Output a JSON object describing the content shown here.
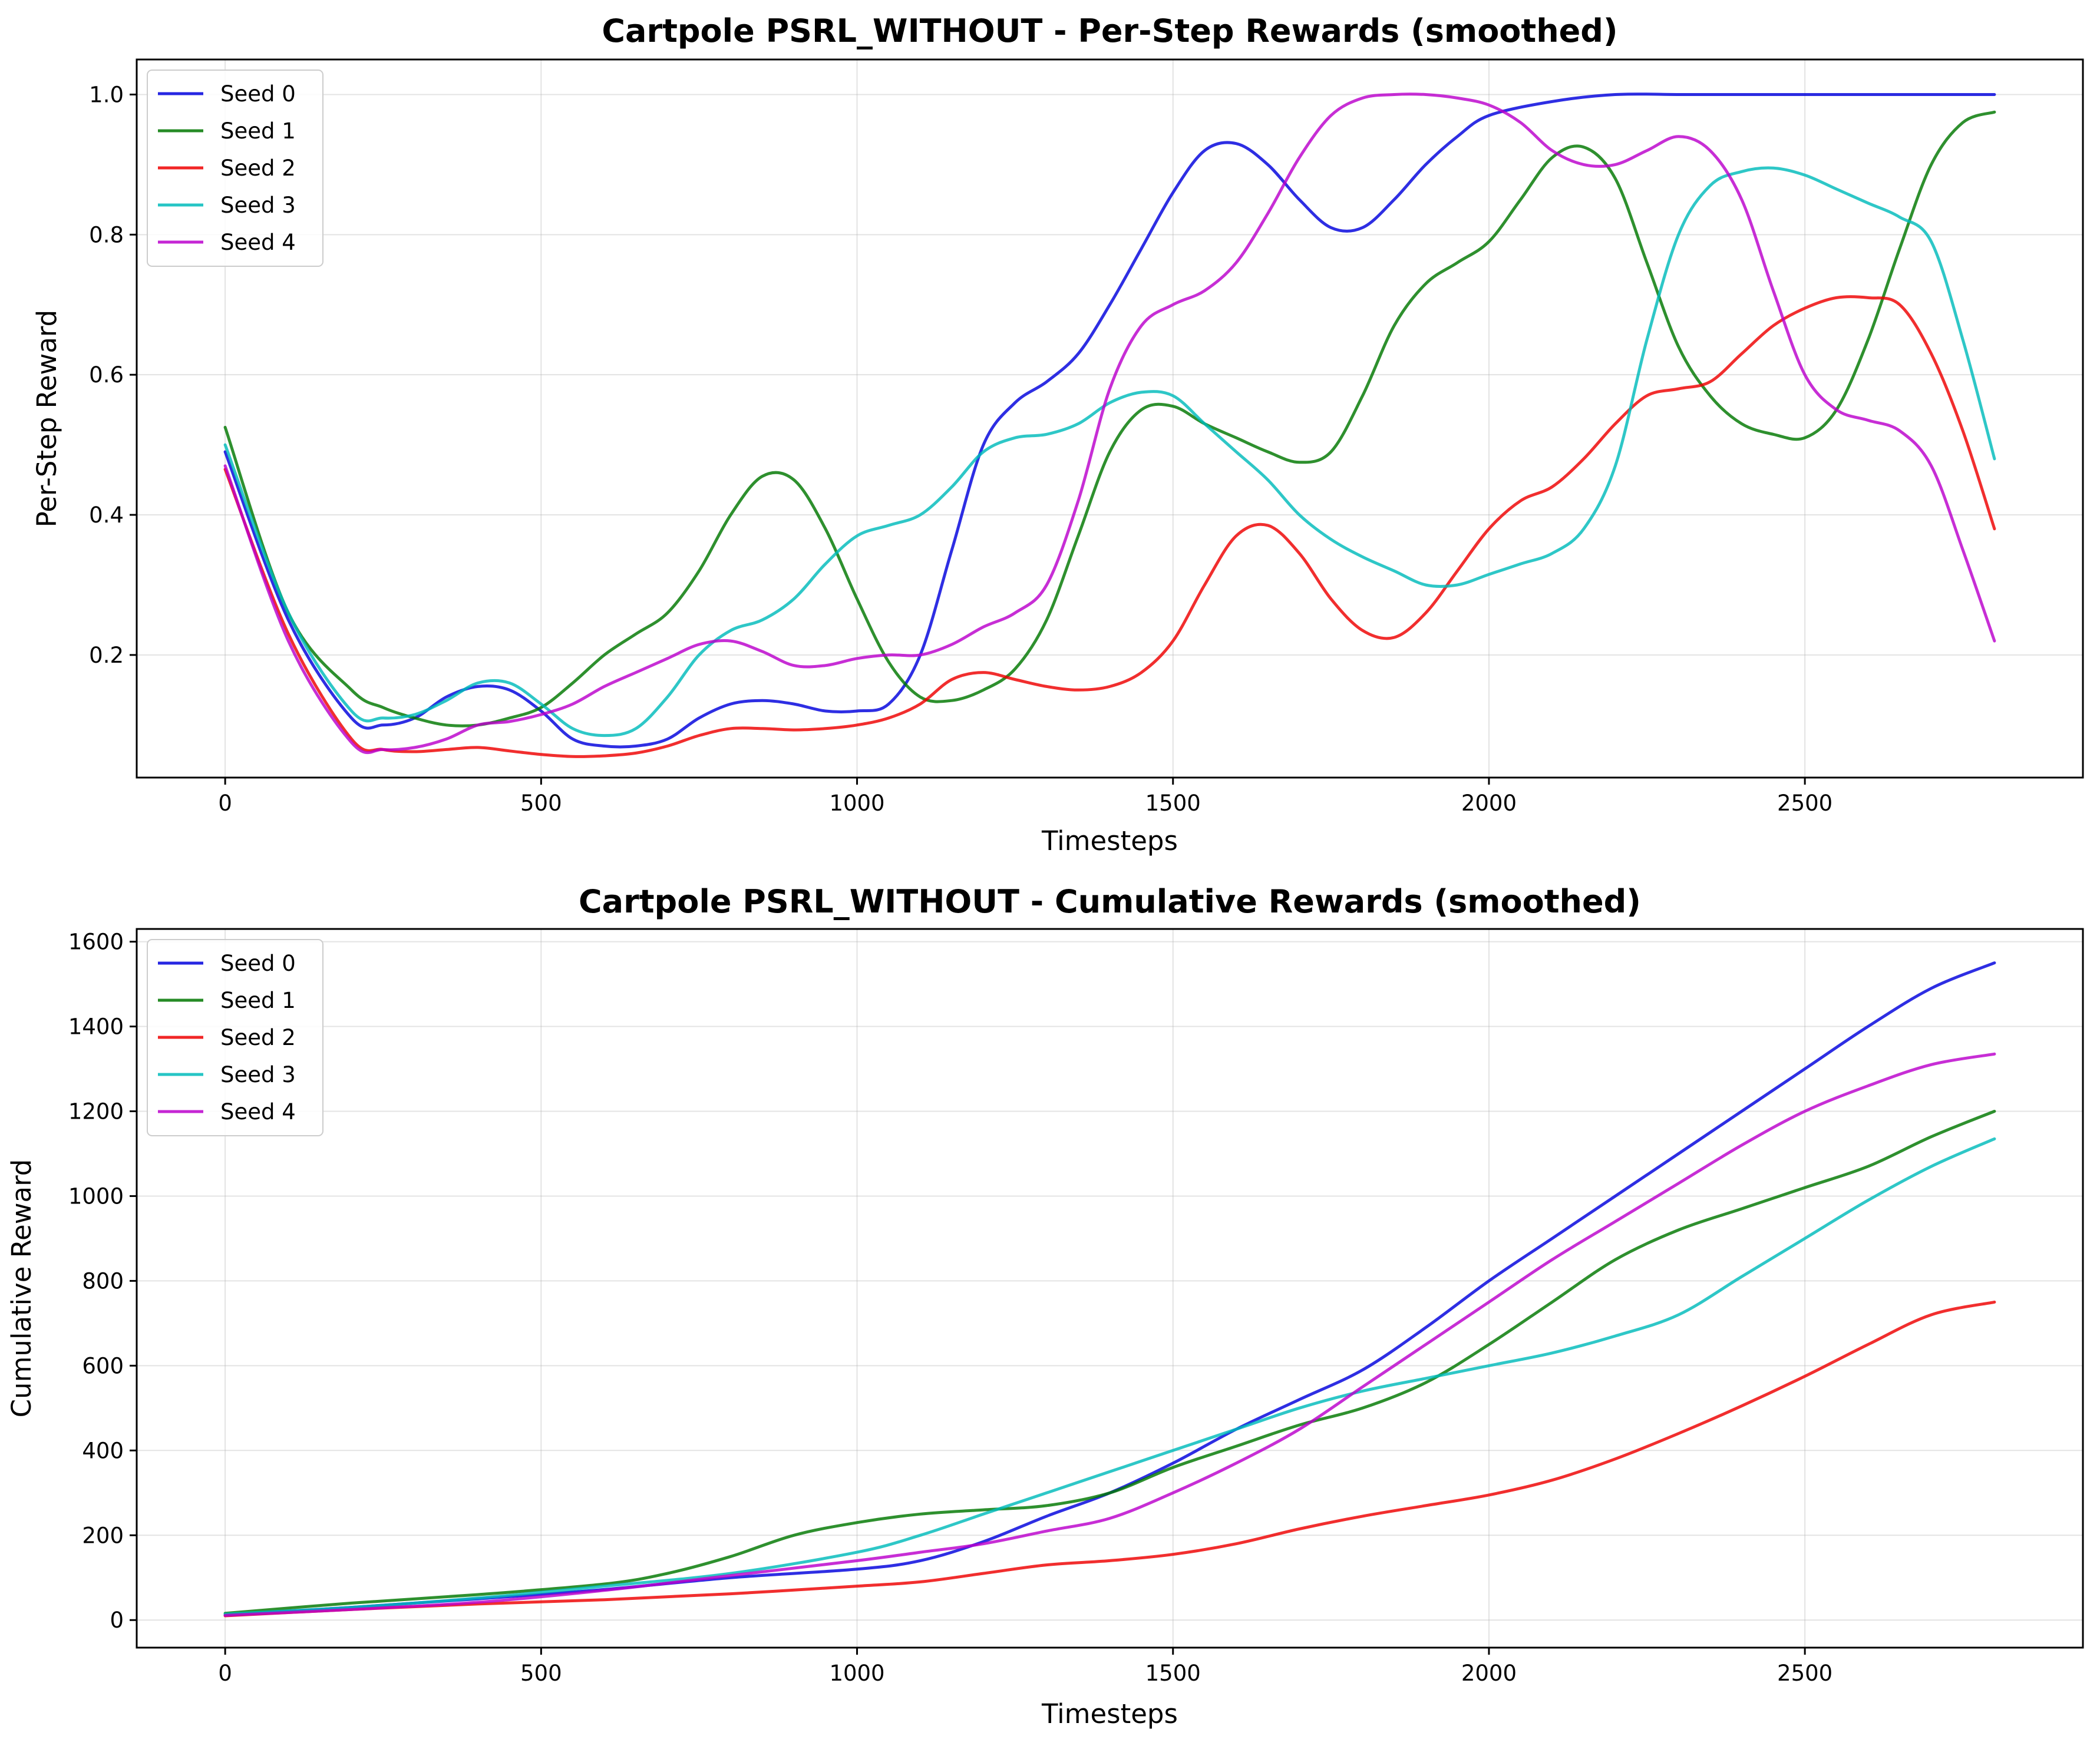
{
  "colors": {
    "Seed 0": "#0000dd",
    "Seed 1": "#007700",
    "Seed 2": "#ee0000",
    "Seed 3": "#00bbbb",
    "Seed 4": "#bb00cc"
  },
  "chart_data": [
    {
      "type": "line",
      "title": "Cartpole PSRL_WITHOUT - Per-Step Rewards (smoothed)",
      "xlabel": "Timesteps",
      "ylabel": "Per-Step Reward",
      "xlim": [
        -140,
        2940
      ],
      "ylim": [
        0.025,
        1.05
      ],
      "xticks": [
        0,
        500,
        1000,
        1500,
        2000,
        2500
      ],
      "yticks": [
        0.2,
        0.4,
        0.6,
        0.8,
        1.0
      ],
      "ytick_format": 1,
      "grid": true,
      "legend": "top-left",
      "series": [
        {
          "name": "Seed 0",
          "x": [
            0,
            100,
            200,
            250,
            300,
            350,
            400,
            450,
            500,
            550,
            600,
            650,
            700,
            750,
            800,
            850,
            900,
            950,
            1000,
            1050,
            1100,
            1150,
            1200,
            1250,
            1300,
            1350,
            1400,
            1450,
            1500,
            1550,
            1600,
            1650,
            1700,
            1750,
            1800,
            1850,
            1900,
            1950,
            2000,
            2100,
            2200,
            2300,
            2400,
            2500,
            2600,
            2700,
            2800
          ],
          "y": [
            0.49,
            0.25,
            0.11,
            0.1,
            0.11,
            0.14,
            0.155,
            0.15,
            0.12,
            0.08,
            0.07,
            0.07,
            0.08,
            0.11,
            0.13,
            0.135,
            0.13,
            0.12,
            0.12,
            0.13,
            0.2,
            0.35,
            0.5,
            0.56,
            0.59,
            0.63,
            0.7,
            0.78,
            0.86,
            0.92,
            0.93,
            0.9,
            0.85,
            0.81,
            0.81,
            0.85,
            0.9,
            0.94,
            0.97,
            0.99,
            1.0,
            1.0,
            1.0,
            1.0,
            1.0,
            1.0,
            1.0
          ]
        },
        {
          "name": "Seed 1",
          "x": [
            0,
            100,
            200,
            250,
            300,
            350,
            400,
            450,
            500,
            550,
            600,
            650,
            700,
            750,
            800,
            850,
            900,
            950,
            1000,
            1050,
            1100,
            1150,
            1200,
            1250,
            1300,
            1350,
            1400,
            1450,
            1500,
            1550,
            1600,
            1650,
            1700,
            1750,
            1800,
            1850,
            1900,
            1950,
            2000,
            2050,
            2100,
            2150,
            2200,
            2250,
            2300,
            2350,
            2400,
            2450,
            2500,
            2550,
            2600,
            2650,
            2700,
            2750,
            2800
          ],
          "y": [
            0.525,
            0.26,
            0.15,
            0.125,
            0.11,
            0.1,
            0.1,
            0.11,
            0.125,
            0.16,
            0.2,
            0.23,
            0.26,
            0.32,
            0.4,
            0.455,
            0.45,
            0.38,
            0.28,
            0.19,
            0.14,
            0.135,
            0.15,
            0.18,
            0.25,
            0.37,
            0.49,
            0.55,
            0.555,
            0.53,
            0.51,
            0.49,
            0.475,
            0.49,
            0.57,
            0.67,
            0.73,
            0.76,
            0.79,
            0.85,
            0.91,
            0.925,
            0.88,
            0.76,
            0.64,
            0.57,
            0.53,
            0.515,
            0.51,
            0.55,
            0.65,
            0.78,
            0.9,
            0.96,
            0.975
          ]
        },
        {
          "name": "Seed 2",
          "x": [
            0,
            100,
            200,
            250,
            300,
            350,
            400,
            450,
            500,
            550,
            600,
            650,
            700,
            750,
            800,
            850,
            900,
            950,
            1000,
            1050,
            1100,
            1150,
            1200,
            1250,
            1300,
            1350,
            1400,
            1450,
            1500,
            1550,
            1600,
            1650,
            1700,
            1750,
            1800,
            1850,
            1900,
            1950,
            2000,
            2050,
            2100,
            2150,
            2200,
            2250,
            2300,
            2350,
            2400,
            2450,
            2500,
            2550,
            2600,
            2650,
            2700,
            2750,
            2800
          ],
          "y": [
            0.465,
            0.23,
            0.08,
            0.065,
            0.062,
            0.065,
            0.068,
            0.063,
            0.058,
            0.055,
            0.056,
            0.06,
            0.07,
            0.085,
            0.095,
            0.095,
            0.093,
            0.095,
            0.1,
            0.11,
            0.13,
            0.165,
            0.175,
            0.165,
            0.155,
            0.15,
            0.155,
            0.175,
            0.22,
            0.3,
            0.37,
            0.385,
            0.345,
            0.28,
            0.235,
            0.225,
            0.26,
            0.32,
            0.38,
            0.42,
            0.44,
            0.48,
            0.53,
            0.57,
            0.58,
            0.59,
            0.63,
            0.67,
            0.695,
            0.71,
            0.71,
            0.7,
            0.63,
            0.52,
            0.38
          ]
        },
        {
          "name": "Seed 3",
          "x": [
            0,
            100,
            200,
            250,
            300,
            350,
            400,
            450,
            500,
            550,
            600,
            650,
            700,
            750,
            800,
            850,
            900,
            950,
            1000,
            1050,
            1100,
            1150,
            1200,
            1250,
            1300,
            1350,
            1400,
            1450,
            1500,
            1550,
            1600,
            1650,
            1700,
            1750,
            1800,
            1850,
            1900,
            1950,
            2000,
            2050,
            2100,
            2150,
            2200,
            2250,
            2300,
            2350,
            2400,
            2450,
            2500,
            2550,
            2600,
            2650,
            2700,
            2750,
            2800
          ],
          "y": [
            0.5,
            0.26,
            0.12,
            0.11,
            0.115,
            0.135,
            0.16,
            0.16,
            0.13,
            0.095,
            0.085,
            0.095,
            0.14,
            0.2,
            0.235,
            0.25,
            0.28,
            0.33,
            0.37,
            0.385,
            0.4,
            0.44,
            0.49,
            0.51,
            0.515,
            0.53,
            0.56,
            0.575,
            0.57,
            0.53,
            0.49,
            0.45,
            0.4,
            0.365,
            0.34,
            0.32,
            0.3,
            0.3,
            0.315,
            0.33,
            0.345,
            0.38,
            0.47,
            0.65,
            0.8,
            0.87,
            0.89,
            0.895,
            0.885,
            0.865,
            0.845,
            0.825,
            0.79,
            0.65,
            0.48
          ]
        },
        {
          "name": "Seed 4",
          "x": [
            0,
            100,
            200,
            250,
            300,
            350,
            400,
            450,
            500,
            550,
            600,
            650,
            700,
            750,
            800,
            850,
            900,
            950,
            1000,
            1050,
            1100,
            1150,
            1200,
            1250,
            1300,
            1350,
            1400,
            1450,
            1500,
            1550,
            1600,
            1650,
            1700,
            1750,
            1800,
            1850,
            1900,
            1950,
            2000,
            2050,
            2100,
            2150,
            2200,
            2250,
            2300,
            2350,
            2400,
            2450,
            2500,
            2550,
            2600,
            2650,
            2700,
            2750,
            2800
          ],
          "y": [
            0.47,
            0.22,
            0.075,
            0.065,
            0.068,
            0.08,
            0.1,
            0.105,
            0.115,
            0.13,
            0.155,
            0.175,
            0.195,
            0.215,
            0.22,
            0.205,
            0.185,
            0.185,
            0.195,
            0.2,
            0.2,
            0.215,
            0.24,
            0.26,
            0.3,
            0.42,
            0.58,
            0.67,
            0.7,
            0.72,
            0.76,
            0.83,
            0.91,
            0.97,
            0.995,
            1.0,
            1.0,
            0.995,
            0.985,
            0.96,
            0.92,
            0.9,
            0.9,
            0.92,
            0.94,
            0.92,
            0.85,
            0.72,
            0.6,
            0.55,
            0.535,
            0.52,
            0.47,
            0.35,
            0.22
          ]
        }
      ]
    },
    {
      "type": "line",
      "title": "Cartpole PSRL_WITHOUT - Cumulative Rewards (smoothed)",
      "xlabel": "Timesteps",
      "ylabel": "Cumulative Reward",
      "xlim": [
        -140,
        2940
      ],
      "ylim": [
        -65,
        1630
      ],
      "xticks": [
        0,
        500,
        1000,
        1500,
        2000,
        2500
      ],
      "yticks": [
        0,
        200,
        400,
        600,
        800,
        1000,
        1200,
        1400,
        1600
      ],
      "ytick_format": 0,
      "grid": true,
      "legend": "top-left",
      "series": [
        {
          "name": "Seed 0",
          "x": [
            0,
            200,
            400,
            600,
            800,
            1000,
            1100,
            1200,
            1300,
            1400,
            1500,
            1600,
            1700,
            1800,
            1900,
            2000,
            2100,
            2200,
            2300,
            2400,
            2500,
            2600,
            2700,
            2800
          ],
          "y": [
            12,
            30,
            50,
            72,
            100,
            120,
            140,
            185,
            245,
            300,
            370,
            450,
            520,
            590,
            690,
            800,
            900,
            1000,
            1100,
            1200,
            1300,
            1400,
            1490,
            1550
          ]
        },
        {
          "name": "Seed 1",
          "x": [
            0,
            200,
            400,
            600,
            700,
            800,
            900,
            1000,
            1100,
            1200,
            1300,
            1400,
            1500,
            1600,
            1700,
            1800,
            1900,
            2000,
            2100,
            2200,
            2300,
            2400,
            2500,
            2600,
            2700,
            2800
          ],
          "y": [
            16,
            40,
            60,
            85,
            110,
            150,
            200,
            230,
            250,
            260,
            270,
            300,
            360,
            410,
            460,
            500,
            560,
            650,
            750,
            850,
            920,
            970,
            1020,
            1070,
            1140,
            1200
          ]
        },
        {
          "name": "Seed 2",
          "x": [
            0,
            200,
            400,
            600,
            800,
            1000,
            1100,
            1200,
            1300,
            1400,
            1500,
            1600,
            1700,
            1800,
            1900,
            2000,
            2100,
            2200,
            2300,
            2400,
            2500,
            2600,
            2700,
            2800
          ],
          "y": [
            10,
            25,
            38,
            48,
            62,
            80,
            90,
            110,
            130,
            140,
            155,
            180,
            215,
            245,
            270,
            295,
            330,
            380,
            440,
            505,
            575,
            650,
            720,
            750
          ]
        },
        {
          "name": "Seed 3",
          "x": [
            0,
            200,
            400,
            600,
            800,
            1000,
            1100,
            1200,
            1300,
            1400,
            1500,
            1600,
            1700,
            1800,
            1900,
            2000,
            2100,
            2200,
            2300,
            2400,
            2500,
            2600,
            2700,
            2800
          ],
          "y": [
            14,
            30,
            52,
            80,
            110,
            160,
            200,
            250,
            300,
            350,
            400,
            450,
            500,
            540,
            570,
            600,
            630,
            670,
            720,
            810,
            900,
            990,
            1070,
            1135
          ]
        },
        {
          "name": "Seed 4",
          "x": [
            0,
            200,
            400,
            600,
            800,
            1000,
            1100,
            1200,
            1300,
            1400,
            1500,
            1600,
            1700,
            1800,
            1900,
            2000,
            2100,
            2200,
            2300,
            2400,
            2500,
            2600,
            2700,
            2800
          ],
          "y": [
            11,
            25,
            42,
            70,
            105,
            140,
            160,
            180,
            210,
            240,
            300,
            370,
            450,
            550,
            650,
            750,
            850,
            940,
            1030,
            1120,
            1200,
            1260,
            1310,
            1335
          ]
        }
      ]
    }
  ]
}
